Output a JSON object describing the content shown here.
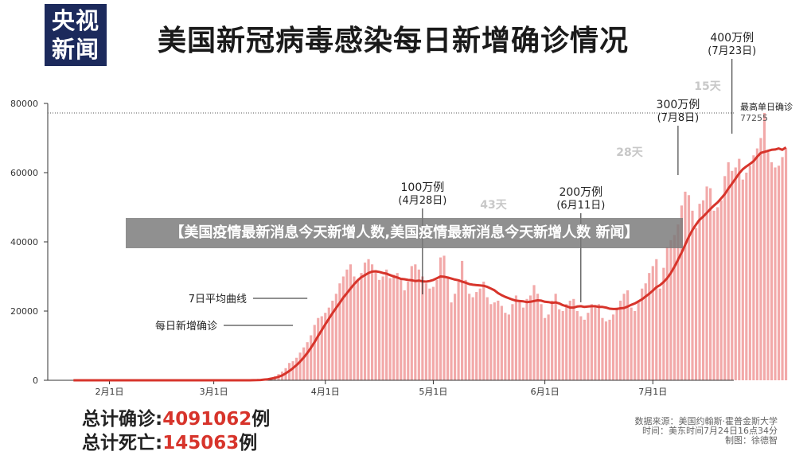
{
  "header": {
    "logo_line1": "央视",
    "logo_line2": "新闻",
    "title": "美国新冠病毒感染每日新增确诊情况"
  },
  "banner": "【美国疫情最新消息今天新增人数,美国疫情最新消息今天新增人数 新闻】",
  "totals": {
    "confirmed_label": "总计确诊:",
    "confirmed_value": "4091062",
    "confirmed_unit": "例",
    "deaths_label": "总计死亡:",
    "deaths_value": "145063",
    "deaths_unit": "例"
  },
  "source": {
    "line1": "数据来源：美国约翰斯·霍普金斯大学",
    "line2": "时间：美东时间7月24日16点34分",
    "line3": "制图：徐德智"
  },
  "colors": {
    "bar": "#f2a9a9",
    "line": "#d7342b",
    "text": "#222222",
    "days": "#c8c8c8"
  },
  "chart_data": {
    "type": "bar",
    "title": "美国新冠病毒感染每日新增确诊情况",
    "xlabel": "",
    "ylabel": "",
    "x_start": "2020-01-22",
    "x_end": "2020-07-23",
    "xticks": [
      {
        "date": "2020-02-01",
        "label": "2月1日"
      },
      {
        "date": "2020-03-01",
        "label": "3月1日"
      },
      {
        "date": "2020-04-01",
        "label": "4月1日"
      },
      {
        "date": "2020-05-01",
        "label": "5月1日"
      },
      {
        "date": "2020-06-01",
        "label": "6月1日"
      },
      {
        "date": "2020-07-01",
        "label": "7月1日"
      }
    ],
    "ylim": [
      0,
      80000
    ],
    "yticks": [
      0,
      20000,
      40000,
      60000,
      80000
    ],
    "grid": false,
    "series": [
      {
        "name": "每日新增确诊",
        "type": "bar",
        "values": [
          0,
          0,
          0,
          0,
          0,
          0,
          0,
          0,
          0,
          0,
          0,
          0,
          0,
          0,
          0,
          0,
          0,
          0,
          0,
          0,
          0,
          0,
          0,
          0,
          0,
          0,
          0,
          0,
          0,
          0,
          0,
          0,
          0,
          0,
          0,
          0,
          0,
          0,
          0,
          0,
          0,
          0,
          0,
          0,
          0,
          0,
          0,
          0,
          0,
          0,
          50,
          100,
          200,
          300,
          400,
          800,
          1200,
          1800,
          2500,
          3500,
          5000,
          5500,
          6500,
          8000,
          9500,
          11000,
          13000,
          16000,
          18000,
          18500,
          19500,
          21000,
          23000,
          25000,
          28000,
          30000,
          32000,
          33500,
          30000,
          29000,
          31000,
          34000,
          35000,
          33500,
          31500,
          29000,
          30000,
          32000,
          29500,
          30500,
          31000,
          29500,
          26000,
          28500,
          33000,
          33500,
          32000,
          30000,
          28000,
          26500,
          27000,
          29000,
          35500,
          36000,
          30000,
          22500,
          25000,
          28500,
          34500,
          29000,
          25000,
          24000,
          25500,
          26500,
          28500,
          24000,
          22000,
          22500,
          23000,
          21500,
          19500,
          19000,
          22000,
          24500,
          23000,
          21000,
          23500,
          24500,
          27500,
          25000,
          22000,
          18000,
          19000,
          23000,
          25000,
          20500,
          20000,
          22000,
          23000,
          23500,
          20000,
          18500,
          17500,
          19500,
          22000,
          21500,
          22000,
          18000,
          17000,
          17500,
          19000,
          21000,
          23000,
          25000,
          26000,
          21000,
          20000,
          23000,
          26500,
          28000,
          31000,
          33000,
          35000,
          26500,
          32500,
          38500,
          40500,
          42000,
          45000,
          50500,
          54500,
          53500,
          49000,
          44000,
          51000,
          52000,
          56000,
          55500,
          49000,
          50000,
          52000,
          59000,
          63000,
          60500,
          61500,
          64000,
          58000,
          60000,
          62000,
          65000,
          67000,
          70000,
          77255,
          66000,
          63000,
          61500,
          62000,
          64500,
          67000
        ]
      },
      {
        "name": "7日平均曲线",
        "type": "line",
        "values": [
          0,
          0,
          0,
          0,
          0,
          0,
          0,
          0,
          0,
          0,
          0,
          0,
          0,
          0,
          0,
          0,
          0,
          0,
          0,
          0,
          0,
          0,
          0,
          0,
          0,
          0,
          0,
          0,
          0,
          0,
          0,
          0,
          0,
          0,
          0,
          0,
          0,
          0,
          0,
          0,
          0,
          0,
          0,
          0,
          0,
          0,
          0,
          0,
          0,
          0,
          20,
          50,
          100,
          200,
          300,
          500,
          700,
          1000,
          1400,
          2000,
          2700,
          3500,
          4400,
          5400,
          6600,
          7900,
          9400,
          11000,
          12800,
          14500,
          16200,
          17800,
          19400,
          20900,
          22400,
          23900,
          25200,
          26500,
          27800,
          28900,
          29800,
          30400,
          31000,
          31400,
          31500,
          31300,
          31000,
          30800,
          30400,
          30000,
          29700,
          29300,
          29200,
          29000,
          28900,
          28700,
          28800,
          28600,
          28500,
          28700,
          29000,
          29500,
          30000,
          29900,
          29700,
          29400,
          29100,
          28900,
          28500,
          28200,
          27800,
          27600,
          27500,
          27400,
          27300,
          27000,
          26500,
          26000,
          25200,
          24600,
          24100,
          23700,
          23300,
          23000,
          22900,
          22800,
          22600,
          22700,
          22900,
          23100,
          23000,
          22700,
          22600,
          22400,
          22500,
          22200,
          21700,
          21400,
          21000,
          21000,
          21300,
          21400,
          21200,
          21300,
          21400,
          21400,
          21200,
          21200,
          21000,
          20700,
          20600,
          20600,
          20800,
          20900,
          21300,
          21800,
          22200,
          22800,
          23400,
          24200,
          25000,
          25900,
          26900,
          27500,
          28400,
          29500,
          31000,
          32800,
          34800,
          36900,
          39200,
          41500,
          43400,
          45000,
          46400,
          47300,
          48400,
          49500,
          50500,
          51400,
          52600,
          53800,
          55400,
          56800,
          58300,
          59800,
          61000,
          61800,
          62500,
          63300,
          64600,
          65700,
          66000,
          66300,
          66600,
          66700,
          67000,
          66600,
          67300
        ]
      }
    ],
    "max_line": {
      "value": 77255,
      "label_line1": "最高单日确诊",
      "label_line2": "77255"
    },
    "legend_labels": [
      {
        "text": "7日平均曲线",
        "target_date": "2020-03-31"
      },
      {
        "text": "每日新增确诊",
        "target_date": "2020-03-31"
      }
    ],
    "milestones": [
      {
        "date": "2020-04-28",
        "line1": "100万例",
        "line2": "(4月28日)"
      },
      {
        "date": "2020-06-11",
        "line1": "200万例",
        "line2": "(6月11日)"
      },
      {
        "date": "2020-07-08",
        "line1": "300万例",
        "line2": "(7月8日)"
      },
      {
        "date": "2020-07-23",
        "line1": "400万例",
        "line2": "(7月23日)"
      }
    ],
    "intervals": [
      "43天",
      "28天",
      "15天"
    ]
  }
}
